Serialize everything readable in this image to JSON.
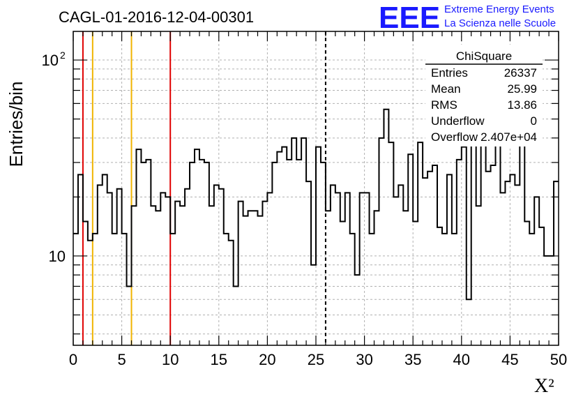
{
  "chart_data": {
    "type": "bar",
    "title": "CAGL-01-2016-12-04-00301",
    "xlabel": "X²",
    "ylabel": "Entries/bin",
    "xlim": [
      0,
      50
    ],
    "ylim": [
      3.5,
      140
    ],
    "y_scale": "log",
    "grid": true,
    "x_tick_labels": [
      "0",
      "5",
      "10",
      "15",
      "20",
      "25",
      "30",
      "35",
      "40",
      "45",
      "50"
    ],
    "y_tick_labels": [
      {
        "value": 10,
        "label": "10"
      },
      {
        "value": 100,
        "label": "10",
        "exp": "2"
      }
    ],
    "bin_width": 0.5,
    "values": [
      13,
      26,
      15,
      12,
      13,
      23,
      26,
      21,
      13,
      22,
      13,
      7,
      18,
      35,
      30,
      31,
      18,
      17,
      21,
      20,
      13,
      19,
      18,
      22,
      30,
      35,
      31,
      30,
      18,
      23,
      22,
      13,
      12,
      7,
      19,
      16,
      17,
      17,
      16,
      19,
      21,
      30,
      34,
      36,
      31,
      40,
      31,
      40,
      24,
      9,
      36,
      30,
      17,
      23,
      21,
      15,
      21,
      13,
      8,
      21,
      21,
      13,
      17,
      40,
      56,
      38,
      20,
      23,
      17,
      33,
      15,
      38,
      25,
      27,
      29,
      14,
      13,
      26,
      13,
      31,
      36,
      6,
      71,
      18,
      48,
      27,
      29,
      39,
      21,
      24,
      26,
      23,
      40,
      15,
      13,
      20,
      14,
      10,
      10,
      24
    ],
    "reference_lines": [
      {
        "x": 1,
        "color": "#e00000",
        "style": "solid"
      },
      {
        "x": 2,
        "color": "#f0b400",
        "style": "solid"
      },
      {
        "x": 6,
        "color": "#f0b400",
        "style": "solid"
      },
      {
        "x": 10,
        "color": "#e00000",
        "style": "solid"
      },
      {
        "x": 26,
        "color": "#000000",
        "style": "dashed"
      }
    ]
  },
  "stats": {
    "title": "ChiSquare",
    "rows": [
      {
        "label": "Entries",
        "value": "26337"
      },
      {
        "label": "Mean",
        "value": "25.99"
      },
      {
        "label": "RMS",
        "value": "13.86"
      },
      {
        "label": "Underflow",
        "value": "0"
      },
      {
        "label": "Overflow",
        "value": "2.407e+04"
      }
    ]
  },
  "logo": {
    "text": "EEE",
    "line1": "Extreme Energy Events",
    "line2": "La Scienza nelle Scuole",
    "color": "#1a1aff"
  }
}
